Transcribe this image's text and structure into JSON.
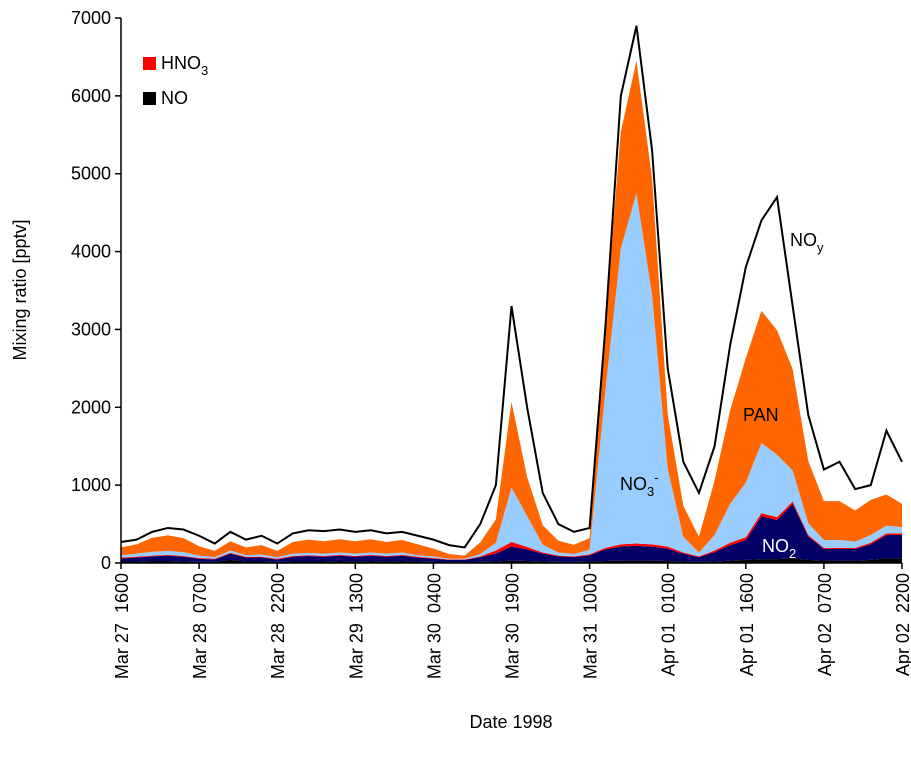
{
  "chart_data": {
    "type": "area",
    "xlabel": "Date 1998",
    "ylabel": "Mixing ratio [pptv]",
    "categories": [
      "Mar 27  1600",
      null,
      null,
      null,
      null,
      "Mar 28  0700",
      null,
      null,
      null,
      null,
      "Mar 28  2200",
      null,
      null,
      null,
      null,
      "Mar 29  1300",
      null,
      null,
      null,
      null,
      "Mar 30  0400",
      null,
      null,
      null,
      null,
      "Mar 30  1900",
      null,
      null,
      null,
      null,
      "Mar 31  1000",
      null,
      null,
      null,
      null,
      "Apr 01  0100",
      null,
      null,
      null,
      null,
      "Apr 01  1600",
      null,
      null,
      null,
      null,
      "Apr 02  0700",
      null,
      null,
      null,
      null,
      "Apr 02  2200"
    ],
    "ylim": [
      0,
      7000
    ],
    "yticks": [
      0,
      1000,
      2000,
      3000,
      4000,
      5000,
      6000,
      7000
    ],
    "grid": false,
    "legend_position": "upper left",
    "series": [
      {
        "name": "NO",
        "color": "#000000",
        "stacked": true,
        "legend": true,
        "values": [
          20,
          20,
          25,
          25,
          20,
          15,
          15,
          40,
          20,
          20,
          15,
          20,
          20,
          20,
          25,
          20,
          25,
          20,
          25,
          20,
          15,
          10,
          10,
          15,
          20,
          30,
          25,
          20,
          15,
          15,
          20,
          25,
          30,
          30,
          30,
          25,
          20,
          15,
          20,
          30,
          40,
          50,
          50,
          60,
          40,
          30,
          30,
          30,
          40,
          60,
          60
        ]
      },
      {
        "name": "NO",
        "sub": "2",
        "color": "#000066",
        "stacked": true,
        "legend": false,
        "values": [
          40,
          50,
          60,
          70,
          60,
          40,
          30,
          80,
          50,
          50,
          30,
          60,
          70,
          60,
          70,
          60,
          70,
          60,
          70,
          50,
          40,
          30,
          30,
          60,
          100,
          180,
          150,
          100,
          70,
          60,
          80,
          150,
          180,
          190,
          180,
          160,
          100,
          60,
          120,
          200,
          250,
          550,
          500,
          700,
          300,
          150,
          150,
          150,
          200,
          300,
          300
        ]
      },
      {
        "name": "HNO",
        "sub": "3",
        "color": "#ff0000",
        "stacked": true,
        "legend": true,
        "values": [
          10,
          10,
          10,
          10,
          10,
          10,
          10,
          10,
          10,
          10,
          10,
          10,
          10,
          10,
          10,
          10,
          10,
          10,
          10,
          10,
          10,
          5,
          5,
          10,
          40,
          60,
          30,
          15,
          10,
          10,
          10,
          20,
          30,
          30,
          30,
          25,
          15,
          10,
          20,
          30,
          40,
          40,
          40,
          30,
          20,
          15,
          15,
          15,
          20,
          20,
          20
        ]
      },
      {
        "name": "NO",
        "sub": "3",
        "sup": "-",
        "color": "#99ccff",
        "stacked": true,
        "legend": false,
        "values": [
          30,
          40,
          50,
          50,
          50,
          30,
          20,
          30,
          20,
          30,
          20,
          30,
          30,
          30,
          30,
          30,
          30,
          30,
          30,
          20,
          20,
          10,
          10,
          30,
          100,
          700,
          400,
          100,
          40,
          30,
          60,
          2000,
          3800,
          4500,
          3200,
          1000,
          200,
          50,
          200,
          500,
          700,
          900,
          800,
          400,
          150,
          100,
          100,
          80,
          100,
          100,
          80
        ]
      },
      {
        "name": "PAN",
        "color": "#ff6600",
        "stacked": true,
        "legend": false,
        "values": [
          100,
          120,
          180,
          200,
          180,
          120,
          80,
          120,
          100,
          120,
          80,
          150,
          170,
          160,
          170,
          160,
          170,
          150,
          160,
          140,
          100,
          60,
          40,
          150,
          300,
          1100,
          500,
          250,
          150,
          120,
          150,
          900,
          1500,
          1700,
          1500,
          700,
          400,
          200,
          700,
          1200,
          1600,
          1700,
          1600,
          1300,
          800,
          500,
          500,
          400,
          450,
          400,
          300
        ]
      },
      {
        "name": "NO",
        "sub": "y",
        "color": "#000000",
        "stacked": false,
        "legend": false,
        "values": [
          270,
          300,
          400,
          450,
          430,
          350,
          250,
          400,
          300,
          350,
          250,
          380,
          420,
          410,
          430,
          400,
          420,
          380,
          400,
          350,
          300,
          230,
          200,
          500,
          1000,
          3300,
          2000,
          900,
          500,
          400,
          450,
          3000,
          6000,
          6900,
          5300,
          2500,
          1300,
          900,
          1500,
          2800,
          3800,
          4400,
          4700,
          3300,
          1900,
          1200,
          1300,
          950,
          1000,
          1700,
          1300
        ]
      }
    ]
  }
}
